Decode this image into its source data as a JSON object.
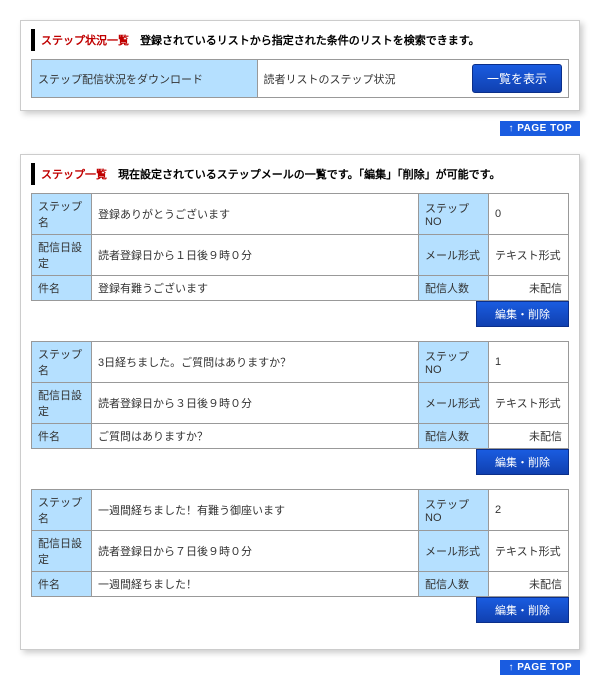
{
  "statusPanel": {
    "title": "ステップ状況一覧",
    "desc": "登録されているリストから指定された条件のリストを検索できます。",
    "row": {
      "leftLabel": "ステップ配信状況をダウンロード",
      "rightLabel": "読者リストのステップ状況",
      "button": "一覧を表示"
    }
  },
  "pageTop": "↑ PAGE TOP",
  "listPanel": {
    "title": "ステップ一覧",
    "desc": "現在設定されているステップメールの一覧です。「編集」「削除」が可能です。",
    "labels": {
      "stepName": "ステップ名",
      "stepNo": "ステップNO",
      "deliverySet": "配信日設定",
      "mailFormat": "メール形式",
      "subject": "件名",
      "recipientCount": "配信人数",
      "editDelete": "編集・削除"
    },
    "steps": [
      {
        "name": "登録ありがとうございます",
        "no": "0",
        "delivery": "読者登録日から１日後９時０分",
        "format": "テキスト形式",
        "subject": "登録有難うございます",
        "count": "未配信"
      },
      {
        "name": "3日経ちました。ご質問はありますか？",
        "no": "1",
        "delivery": "読者登録日から３日後９時０分",
        "format": "テキスト形式",
        "subject": "ご質問はありますか？",
        "count": "未配信"
      },
      {
        "name": "一週間経ちました！有難う御座います",
        "no": "2",
        "delivery": "読者登録日から７日後９時０分",
        "format": "テキスト形式",
        "subject": "一週間経ちました！",
        "count": "未配信"
      }
    ]
  }
}
